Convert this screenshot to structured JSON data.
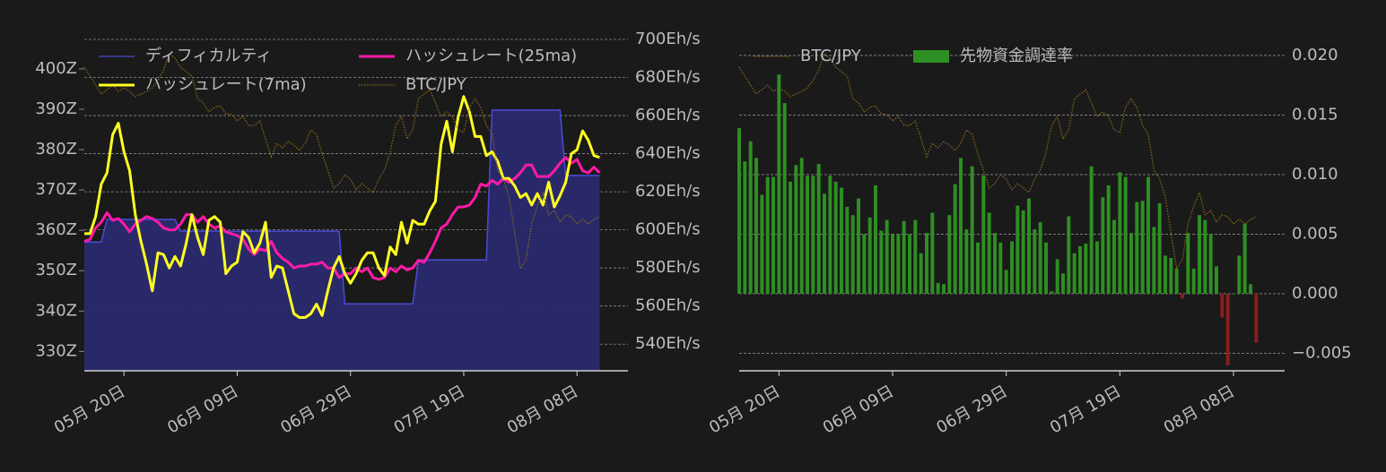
{
  "chart_data": [
    {
      "type": "line",
      "x": [
        "05-13",
        "05-14",
        "05-15",
        "05-16",
        "05-17",
        "05-18",
        "05-19",
        "05-20",
        "05-21",
        "05-22",
        "05-23",
        "05-24",
        "05-25",
        "05-26",
        "05-27",
        "05-28",
        "05-29",
        "05-30",
        "05-31",
        "06-01",
        "06-02",
        "06-03",
        "06-04",
        "06-05",
        "06-06",
        "06-07",
        "06-08",
        "06-09",
        "06-10",
        "06-11",
        "06-12",
        "06-13",
        "06-14",
        "06-15",
        "06-16",
        "06-17",
        "06-18",
        "06-19",
        "06-20",
        "06-21",
        "06-22",
        "06-23",
        "06-24",
        "06-25",
        "06-26",
        "06-27",
        "06-28",
        "06-29",
        "06-30",
        "07-01",
        "07-02",
        "07-03",
        "07-04",
        "07-05",
        "07-06",
        "07-07",
        "07-08",
        "07-09",
        "07-10",
        "07-11",
        "07-12",
        "07-13",
        "07-14",
        "07-15",
        "07-16",
        "07-17",
        "07-18",
        "07-19",
        "07-20",
        "07-21",
        "07-22",
        "07-23",
        "07-24",
        "07-25",
        "07-26",
        "07-27",
        "07-28",
        "07-29",
        "07-30",
        "07-31",
        "08-01",
        "08-02",
        "08-03",
        "08-04",
        "08-05",
        "08-06",
        "08-07",
        "08-08",
        "08-09",
        "08-10",
        "08-11",
        "08-12"
      ],
      "xlim": [
        "05-13",
        "08-17"
      ],
      "xticks": [
        {
          "value": "05-20",
          "label": "05月 20日"
        },
        {
          "value": "06-09",
          "label": "06月 09日"
        },
        {
          "value": "06-29",
          "label": "06月 29日"
        },
        {
          "value": "07-19",
          "label": "07月 19日"
        },
        {
          "value": "08-08",
          "label": "08月 08日"
        }
      ],
      "ylim": [
        325.2,
        407.3
      ],
      "yticks": [
        {
          "value": 330,
          "label": "330Z"
        },
        {
          "value": 340,
          "label": "340Z"
        },
        {
          "value": 350,
          "label": "350Z"
        },
        {
          "value": 360,
          "label": "360Z"
        },
        {
          "value": 370,
          "label": "370Z"
        },
        {
          "value": 380,
          "label": "380Z"
        },
        {
          "value": 390,
          "label": "390Z"
        },
        {
          "value": 400,
          "label": "400Z"
        }
      ],
      "y2lim": [
        526,
        700
      ],
      "y2ticks": [
        {
          "value": 540,
          "label": "540Eh/s"
        },
        {
          "value": 560,
          "label": "560Eh/s"
        },
        {
          "value": 580,
          "label": "580Eh/s"
        },
        {
          "value": 600,
          "label": "600Eh/s"
        },
        {
          "value": 620,
          "label": "620Eh/s"
        },
        {
          "value": 640,
          "label": "640Eh/s"
        },
        {
          "value": 660,
          "label": "660Eh/s"
        },
        {
          "value": 680,
          "label": "680Eh/s"
        },
        {
          "value": 700,
          "label": "700Eh/s"
        }
      ],
      "y3lim": [
        3000,
        4480
      ],
      "grid": true,
      "legend": "upper left",
      "series": [
        {
          "name": "ディフィカルティ",
          "kind": "area",
          "color": "#4a4ad8",
          "axis": "y",
          "values": [
            357.1,
            357.1,
            357.1,
            357.1,
            362.7,
            362.7,
            362.7,
            362.7,
            362.7,
            362.7,
            362.7,
            362.7,
            362.7,
            362.7,
            362.7,
            362.7,
            362.7,
            359.8,
            359.8,
            359.8,
            359.8,
            359.8,
            359.8,
            359.8,
            359.8,
            359.8,
            359.8,
            359.8,
            359.8,
            359.8,
            359.8,
            359.8,
            359.8,
            359.8,
            359.8,
            359.8,
            359.8,
            359.8,
            359.8,
            359.8,
            359.8,
            359.8,
            359.8,
            359.8,
            359.8,
            359.8,
            341.8,
            341.8,
            341.8,
            341.8,
            341.8,
            341.8,
            341.8,
            341.8,
            341.8,
            341.8,
            341.8,
            341.8,
            341.8,
            352.7,
            352.7,
            352.7,
            352.7,
            352.7,
            352.7,
            352.7,
            352.7,
            352.7,
            352.7,
            352.7,
            352.7,
            352.7,
            389.8,
            389.8,
            389.8,
            389.8,
            389.8,
            389.8,
            389.8,
            389.8,
            389.8,
            389.8,
            389.8,
            389.8,
            389.8,
            373.6,
            373.6,
            373.6,
            373.6,
            373.6,
            373.6,
            373.6
          ]
        },
        {
          "name": "ハッシュレート(25ma)",
          "kind": "line",
          "color": "#ff1aa8",
          "axis": "y2",
          "values": [
            594,
            595,
            601,
            604,
            609,
            605,
            606,
            603,
            599,
            603,
            605,
            607,
            606,
            604,
            601,
            600,
            600,
            603,
            608,
            608,
            604,
            607,
            603,
            601,
            602,
            599,
            598,
            597,
            595,
            590,
            587,
            590,
            589,
            594,
            588,
            585,
            583,
            580,
            581,
            581,
            582,
            582,
            583,
            580,
            580,
            575,
            577,
            577,
            580,
            578,
            580,
            575,
            574,
            575,
            580,
            578,
            581,
            579,
            580,
            584,
            583,
            588,
            594,
            601,
            603,
            608,
            612,
            612,
            613,
            617,
            624,
            623,
            626,
            624,
            627,
            625,
            627,
            630,
            634,
            634,
            628,
            628,
            628,
            631,
            635,
            638,
            635,
            637,
            631,
            630,
            633,
            630
          ]
        },
        {
          "name": "ハッシュレート(7ma)",
          "kind": "line",
          "color": "#ffff22",
          "axis": "y2",
          "values": [
            598,
            598,
            607,
            624,
            630,
            650,
            656,
            641,
            631,
            608,
            594,
            582,
            568,
            588,
            587,
            580,
            586,
            581,
            593,
            608,
            596,
            587,
            605,
            607,
            604,
            577,
            581,
            583,
            599,
            596,
            588,
            593,
            604,
            575,
            581,
            580,
            568,
            556,
            554,
            554,
            556,
            561,
            555,
            568,
            580,
            586,
            577,
            572,
            577,
            584,
            588,
            588,
            580,
            576,
            591,
            587,
            604,
            593,
            605,
            603,
            603,
            610,
            615,
            645,
            657,
            641,
            659,
            670,
            662,
            649,
            649,
            639,
            641,
            636,
            627,
            627,
            623,
            617,
            619,
            613,
            619,
            613,
            625,
            612,
            618,
            625,
            640,
            642,
            652,
            647,
            639,
            638
          ]
        },
        {
          "name": "BTC/JPY",
          "kind": "dotted",
          "color": "#8c6a1c",
          "axis": "y3",
          "values": [
            4356,
            4316,
            4276,
            4236,
            4256,
            4276,
            4248,
            4264,
            4248,
            4224,
            4236,
            4248,
            4264,
            4296,
            4344,
            4416,
            4396,
            4356,
            4336,
            4316,
            4216,
            4196,
            4156,
            4176,
            4184,
            4148,
            4144,
            4116,
            4136,
            4096,
            4096,
            4116,
            4036,
            3956,
            4016,
            3996,
            4024,
            4008,
            3984,
            4016,
            4076,
            4056,
            3968,
            3896,
            3816,
            3836,
            3876,
            3856,
            3808,
            3836,
            3816,
            3796,
            3856,
            3896,
            3976,
            4096,
            4136,
            4036,
            4076,
            4216,
            4236,
            4256,
            4196,
            4136,
            4156,
            4136,
            4076,
            4064,
            4176,
            4216,
            4176,
            4096,
            4056,
            3896,
            3856,
            3776,
            3616,
            3456,
            3496,
            3656,
            3736,
            3796,
            3696,
            3716,
            3664,
            3696,
            3688,
            3656,
            3676,
            3656,
            3676,
            3688
          ]
        }
      ]
    },
    {
      "type": "bar",
      "x": [
        "05-13",
        "05-14",
        "05-15",
        "05-16",
        "05-17",
        "05-18",
        "05-19",
        "05-20",
        "05-21",
        "05-22",
        "05-23",
        "05-24",
        "05-25",
        "05-26",
        "05-27",
        "05-28",
        "05-29",
        "05-30",
        "05-31",
        "06-01",
        "06-02",
        "06-03",
        "06-04",
        "06-05",
        "06-06",
        "06-07",
        "06-08",
        "06-09",
        "06-10",
        "06-11",
        "06-12",
        "06-13",
        "06-14",
        "06-15",
        "06-16",
        "06-17",
        "06-18",
        "06-19",
        "06-20",
        "06-21",
        "06-22",
        "06-23",
        "06-24",
        "06-25",
        "06-26",
        "06-27",
        "06-28",
        "06-29",
        "06-30",
        "07-01",
        "07-02",
        "07-03",
        "07-04",
        "07-05",
        "07-06",
        "07-07",
        "07-08",
        "07-09",
        "07-10",
        "07-11",
        "07-12",
        "07-13",
        "07-14",
        "07-15",
        "07-16",
        "07-17",
        "07-18",
        "07-19",
        "07-20",
        "07-21",
        "07-22",
        "07-23",
        "07-24",
        "07-25",
        "07-26",
        "07-27",
        "07-28",
        "07-29",
        "07-30",
        "07-31",
        "08-01",
        "08-02",
        "08-03",
        "08-04",
        "08-05",
        "08-06",
        "08-07",
        "08-08",
        "08-09",
        "08-10",
        "08-11",
        "08-12"
      ],
      "xlim": [
        "05-13",
        "08-17"
      ],
      "xticks": [
        {
          "value": "05-20",
          "label": "05月 20日"
        },
        {
          "value": "06-09",
          "label": "06月 09日"
        },
        {
          "value": "06-29",
          "label": "06月 29日"
        },
        {
          "value": "07-19",
          "label": "07月 19日"
        },
        {
          "value": "08-08",
          "label": "08月 08日"
        }
      ],
      "ylim": [
        -0.00647,
        0.02135
      ],
      "yticks": [
        {
          "value": -0.005,
          "label": "−0.005"
        },
        {
          "value": 0,
          "label": "0.000"
        },
        {
          "value": 0.005,
          "label": "0.005"
        },
        {
          "value": 0.01,
          "label": "0.010"
        },
        {
          "value": 0.015,
          "label": "0.015"
        },
        {
          "value": 0.02,
          "label": "0.020"
        }
      ],
      "y3lim": [
        3000,
        4480
      ],
      "grid": true,
      "legend": "upper left",
      "series": [
        {
          "name": "BTC/JPY",
          "kind": "dotted",
          "color": "#8c6a1c",
          "axis": "y3",
          "values": [
            4356,
            4316,
            4276,
            4236,
            4256,
            4276,
            4248,
            4264,
            4248,
            4224,
            4236,
            4248,
            4264,
            4296,
            4344,
            4416,
            4396,
            4356,
            4336,
            4316,
            4216,
            4196,
            4156,
            4176,
            4184,
            4148,
            4144,
            4116,
            4136,
            4096,
            4096,
            4116,
            4036,
            3956,
            4016,
            3996,
            4024,
            4008,
            3984,
            4016,
            4076,
            4056,
            3968,
            3896,
            3816,
            3836,
            3876,
            3856,
            3808,
            3836,
            3816,
            3796,
            3856,
            3896,
            3976,
            4096,
            4136,
            4036,
            4076,
            4216,
            4236,
            4256,
            4196,
            4136,
            4156,
            4136,
            4076,
            4064,
            4176,
            4216,
            4176,
            4096,
            4056,
            3896,
            3856,
            3776,
            3616,
            3456,
            3496,
            3656,
            3736,
            3796,
            3696,
            3716,
            3664,
            3696,
            3688,
            3656,
            3676,
            3656,
            3676,
            3688
          ]
        },
        {
          "name": "先物資金調達率",
          "kind": "bar",
          "color": "#2e8f22",
          "negative_color": "#8a1e1e",
          "axis": "y",
          "values": [
            0.0139,
            0.0111,
            0.0128,
            0.0114,
            0.0083,
            0.0098,
            0.0098,
            0.0184,
            0.016,
            0.0094,
            0.0108,
            0.0114,
            0.0099,
            0.0099,
            0.0109,
            0.0084,
            0.0099,
            0.0094,
            0.0089,
            0.0073,
            0.0066,
            0.008,
            0.005,
            0.0064,
            0.0091,
            0.0053,
            0.0062,
            0.005,
            0.005,
            0.0061,
            0.005,
            0.0062,
            0.0034,
            0.0051,
            0.0068,
            0.0009,
            0.0008,
            0.0066,
            0.0092,
            0.0114,
            0.0054,
            0.0107,
            0.0043,
            0.0099,
            0.0068,
            0.0051,
            0.0043,
            0.002,
            0.0044,
            0.0074,
            0.007,
            0.008,
            0.0054,
            0.006,
            0.0043,
            0.0002,
            0.0029,
            0.0017,
            0.0065,
            0.0034,
            0.004,
            0.0042,
            0.0107,
            0.0044,
            0.0081,
            0.0091,
            0.0062,
            0.0102,
            0.0098,
            0.0051,
            0.0077,
            0.0078,
            0.0098,
            0.0056,
            0.0076,
            0.0032,
            0.003,
            0.0021,
            -0.0004,
            0.0051,
            0.0021,
            0.0066,
            0.0062,
            0.005,
            0.0023,
            -0.002,
            -0.006,
            0,
            0.0032,
            0.0059,
            0.0008,
            -0.0041
          ]
        }
      ]
    }
  ]
}
